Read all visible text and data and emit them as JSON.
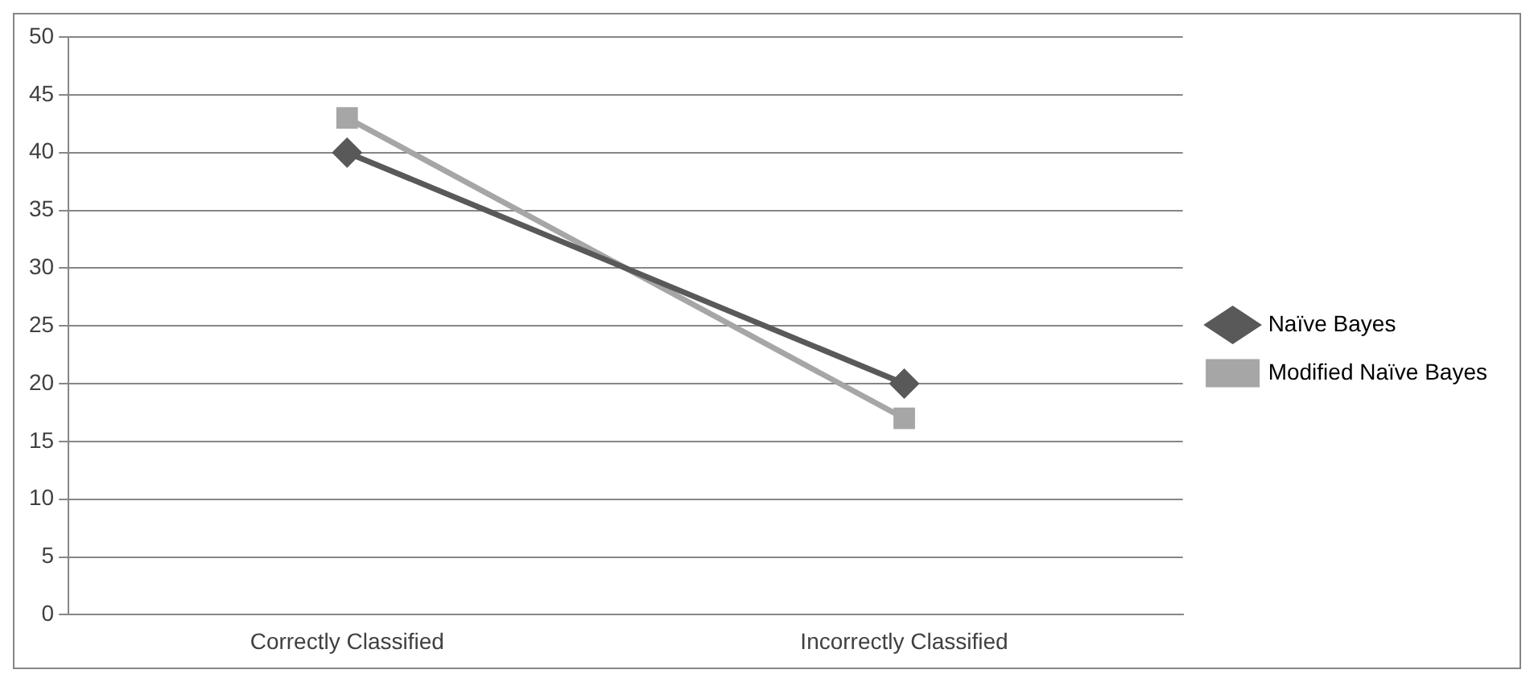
{
  "chart_data": {
    "type": "line",
    "categories": [
      "Correctly Classified",
      "Incorrectly Classified"
    ],
    "series": [
      {
        "name": "Naïve Bayes",
        "color": "#595959",
        "values": [
          40,
          20
        ],
        "marker": "diamond"
      },
      {
        "name": "Modified Naïve Bayes",
        "color": "#a6a6a6",
        "values": [
          43,
          17
        ],
        "marker": "square"
      }
    ],
    "ylim": [
      0,
      50
    ],
    "yticks": [
      0,
      5,
      10,
      15,
      20,
      25,
      30,
      35,
      40,
      45,
      50
    ],
    "grid": "y",
    "legend": "right",
    "line_style": "solid"
  }
}
